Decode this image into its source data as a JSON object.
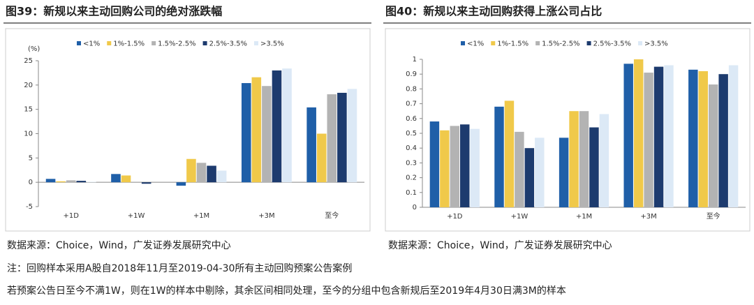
{
  "chart_data": [
    {
      "type": "bar",
      "title": "图39：新规以来主动回购公司的绝对涨跌幅",
      "y_unit": "(%)",
      "categories": [
        "+1D",
        "+1W",
        "+1M",
        "+3M",
        "至今"
      ],
      "series": [
        {
          "name": "<1%",
          "color": "#1f5fa8",
          "values": [
            0.7,
            1.7,
            -0.7,
            20.4,
            15.4
          ]
        },
        {
          "name": "1%-1.5%",
          "color": "#f0c94a",
          "values": [
            0.2,
            1.4,
            4.8,
            21.6,
            10.0
          ]
        },
        {
          "name": "1.5%-2.5%",
          "color": "#b3b3b3",
          "values": [
            0.4,
            0,
            4.0,
            19.8,
            18.1
          ]
        },
        {
          "name": "2.5%-3.5%",
          "color": "#1d3b6e",
          "values": [
            0.3,
            -0.3,
            3.4,
            23.0,
            18.4
          ]
        },
        {
          "name": ">3.5%",
          "color": "#dce9f6",
          "values": [
            0.1,
            0,
            2.4,
            23.4,
            19.2
          ]
        }
      ],
      "ylim": [
        -5,
        25
      ],
      "yticks": [
        -5,
        0,
        5,
        10,
        15,
        20,
        25
      ]
    },
    {
      "type": "bar",
      "title": "图40：新规以来主动回购获得上涨公司占比",
      "categories": [
        "+1D",
        "+1W",
        "+1M",
        "+3M",
        "至今"
      ],
      "series": [
        {
          "name": "<1%",
          "color": "#1f5fa8",
          "values": [
            0.58,
            0.68,
            0.47,
            0.97,
            0.93
          ]
        },
        {
          "name": "1%-1.5%",
          "color": "#f0c94a",
          "values": [
            0.52,
            0.72,
            0.65,
            1.0,
            0.92
          ]
        },
        {
          "name": "1.5%-2.5%",
          "color": "#b3b3b3",
          "values": [
            0.55,
            0.51,
            0.65,
            0.91,
            0.83
          ]
        },
        {
          "name": "2.5%-3.5%",
          "color": "#1d3b6e",
          "values": [
            0.56,
            0.4,
            0.54,
            0.95,
            0.9
          ]
        },
        {
          "name": ">3.5%",
          "color": "#dce9f6",
          "values": [
            0.53,
            0.47,
            0.63,
            0.96,
            0.96
          ]
        }
      ],
      "ylim": [
        0,
        1
      ],
      "yticks": [
        0,
        0.1,
        0.2,
        0.3,
        0.4,
        0.5,
        0.6,
        0.7,
        0.8,
        0.9,
        1
      ]
    }
  ],
  "sources": [
    "数据来源：Choice，Wind，广发证券发展研究中心",
    "数据来源：Choice，Wind，广发证券发展研究中心"
  ],
  "notes": [
    "注：回购样本采用A股自2018年11月至2019-04-30所有主动回购预案公告案例",
    "若预案公告日至今不满1W，则在1W的样本中剔除，其余区间相同处理，至今的分组中包含新规后至2019年4月30日满3M的样本"
  ]
}
